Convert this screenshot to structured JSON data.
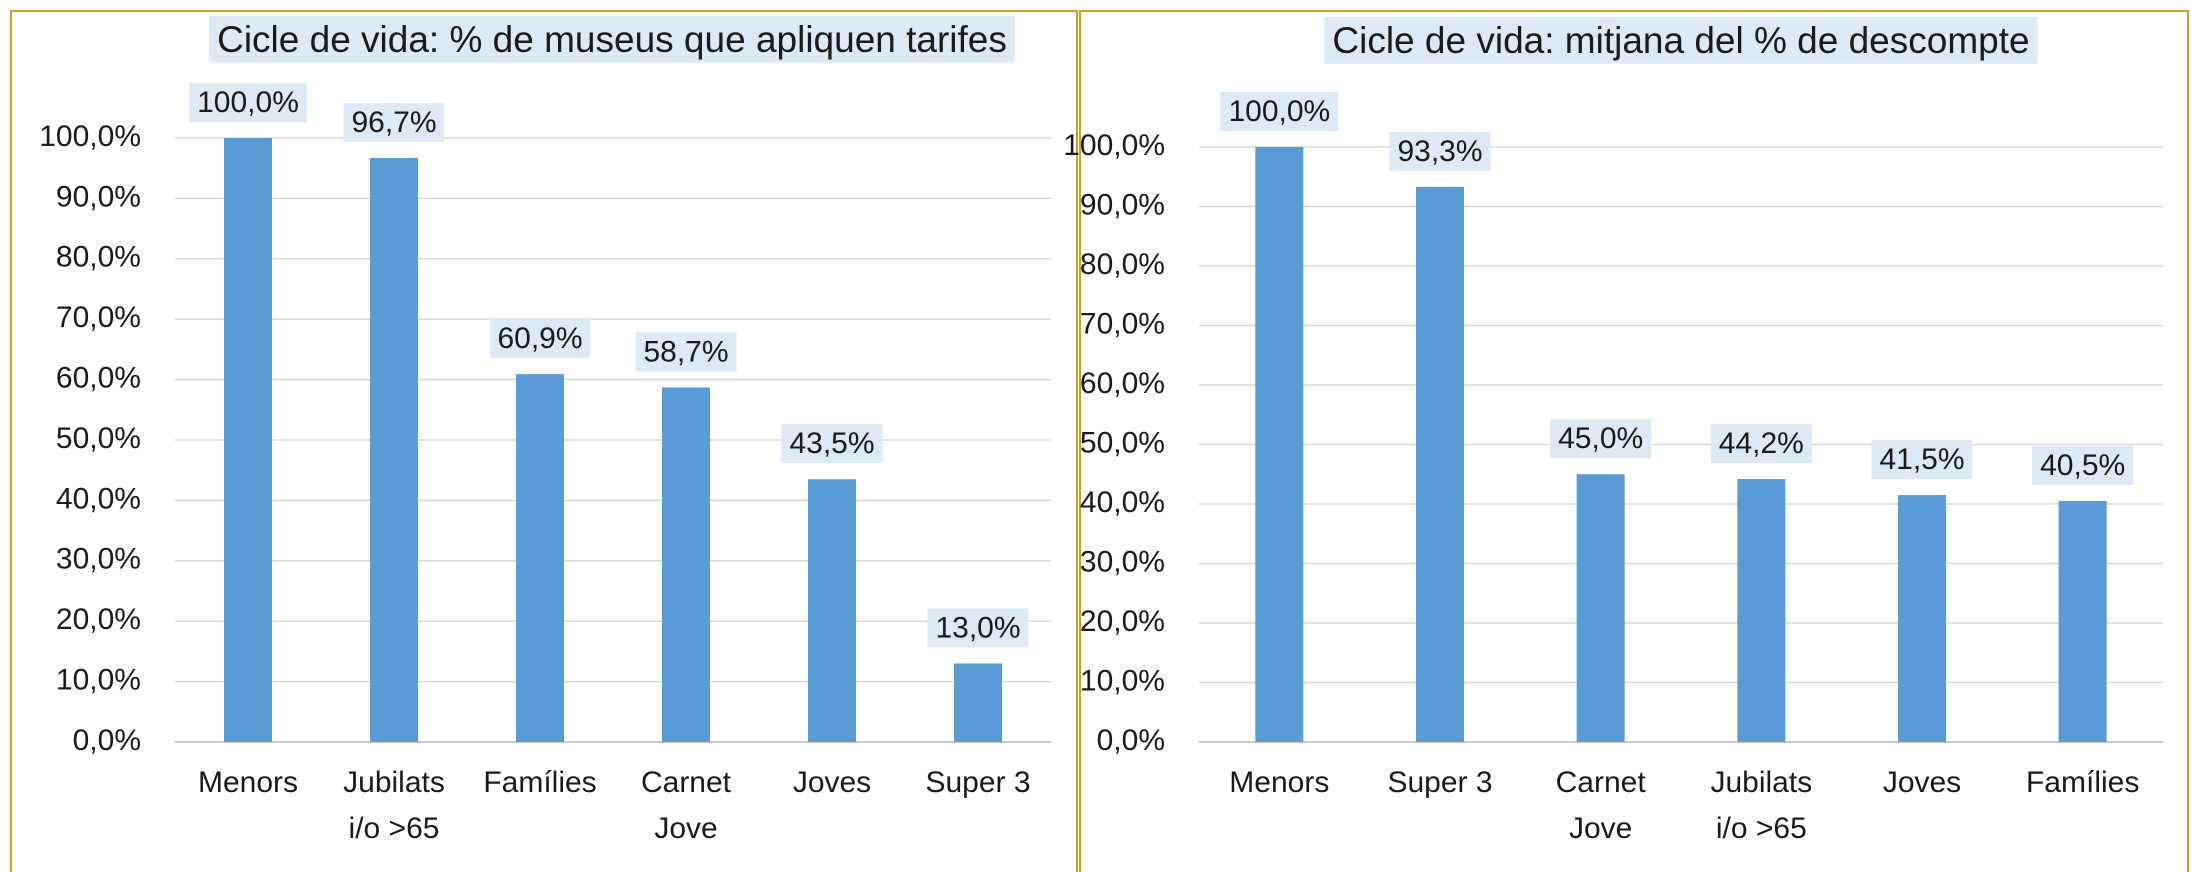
{
  "chart_data": [
    {
      "type": "bar",
      "title": "Cicle de vida: % de museus que apliquen tarifes",
      "categories": [
        "Menors",
        "Jubilats\ni/o >65",
        "Famílies",
        "Carnet\nJove",
        "Joves",
        "Super 3"
      ],
      "values": [
        100.0,
        96.7,
        60.9,
        58.7,
        43.5,
        13.0
      ],
      "value_labels": [
        "100,0%",
        "96,7%",
        "60,9%",
        "58,7%",
        "43,5%",
        "13,0%"
      ],
      "color": "#5b9bd5",
      "ylim": [
        0,
        100
      ],
      "yticks": [
        {
          "value": 0,
          "label": "0,0%"
        },
        {
          "value": 10,
          "label": "10,0%"
        },
        {
          "value": 20,
          "label": "20,0%"
        },
        {
          "value": 30,
          "label": "30,0%"
        },
        {
          "value": 40,
          "label": "40,0%"
        },
        {
          "value": 50,
          "label": "50,0%"
        },
        {
          "value": 60,
          "label": "60,0%"
        },
        {
          "value": 70,
          "label": "70,0%"
        },
        {
          "value": 80,
          "label": "80,0%"
        },
        {
          "value": 90,
          "label": "90,0%"
        },
        {
          "value": 100,
          "label": "100,0%"
        }
      ],
      "grid": true
    },
    {
      "type": "bar",
      "title": "Cicle de vida: mitjana del % de descompte",
      "categories": [
        "Menors",
        "Super 3",
        "Carnet\nJove",
        "Jubilats\ni/o >65",
        "Joves",
        "Famílies"
      ],
      "values": [
        100.0,
        93.3,
        45.0,
        44.2,
        41.5,
        40.5
      ],
      "value_labels": [
        "100,0%",
        "93,3%",
        "45,0%",
        "44,2%",
        "41,5%",
        "40,5%"
      ],
      "color": "#5b9bd5",
      "ylim": [
        0,
        100
      ],
      "yticks": [
        {
          "value": 0,
          "label": "0,0%"
        },
        {
          "value": 10,
          "label": "10,0%"
        },
        {
          "value": 20,
          "label": "20,0%"
        },
        {
          "value": 30,
          "label": "30,0%"
        },
        {
          "value": 40,
          "label": "40,0%"
        },
        {
          "value": 50,
          "label": "50,0%"
        },
        {
          "value": 60,
          "label": "60,0%"
        },
        {
          "value": 70,
          "label": "70,0%"
        },
        {
          "value": 80,
          "label": "80,0%"
        },
        {
          "value": 90,
          "label": "90,0%"
        },
        {
          "value": 100,
          "label": "100,0%"
        }
      ],
      "grid": true
    }
  ]
}
